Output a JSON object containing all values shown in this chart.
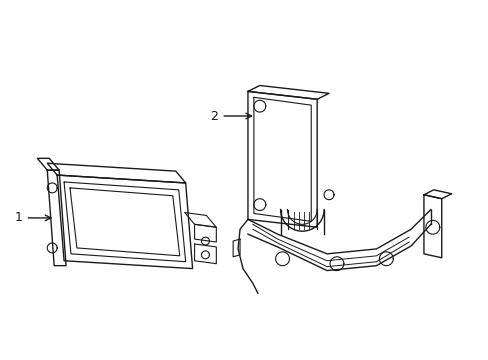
{
  "background_color": "#ffffff",
  "line_color": "#1a1a1a",
  "line_width": 1.0,
  "label1_text": "1",
  "label2_text": "2",
  "figsize": [
    4.89,
    3.6
  ],
  "dpi": 100
}
